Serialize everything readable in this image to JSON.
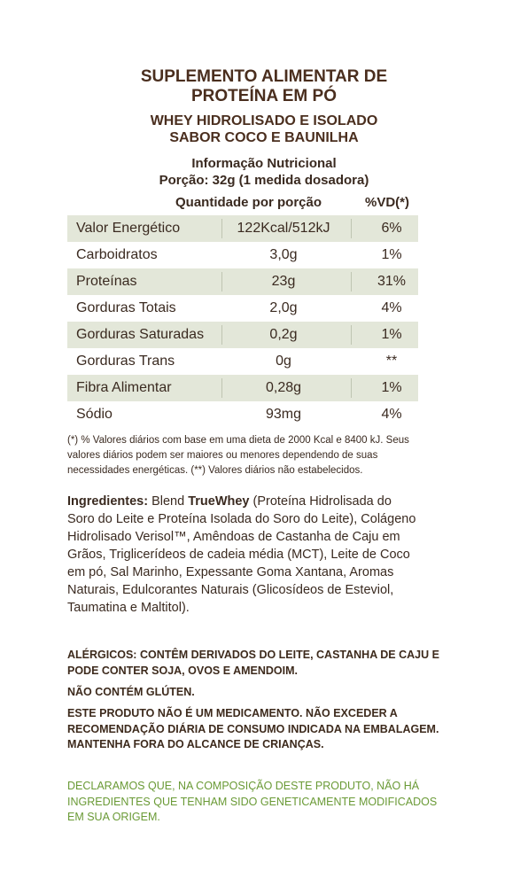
{
  "header": {
    "title_line1": "SUPLEMENTO ALIMENTAR DE",
    "title_line2": "PROTEÍNA EM PÓ",
    "subtitle_line1": "WHEY HIDROLISADO E ISOLADO",
    "subtitle_line2": "SABOR COCO E BAUNILHA"
  },
  "nutrition": {
    "heading": "Informação Nutricional",
    "portion": "Porção: 32g (1 medida dosadora)",
    "col_quantity": "Quantidade por porção",
    "col_vd": "%VD(*)",
    "rows": [
      {
        "name": "Valor Energético",
        "qty": "122Kcal/512kJ",
        "vd": "6%"
      },
      {
        "name": "Carboidratos",
        "qty": "3,0g",
        "vd": "1%"
      },
      {
        "name": "Proteínas",
        "qty": "23g",
        "vd": "31%"
      },
      {
        "name": "Gorduras Totais",
        "qty": "2,0g",
        "vd": "4%"
      },
      {
        "name": "Gorduras Saturadas",
        "qty": "0,2g",
        "vd": "1%"
      },
      {
        "name": "Gorduras Trans",
        "qty": "0g",
        "vd": "**"
      },
      {
        "name": "Fibra Alimentar",
        "qty": "0,28g",
        "vd": "1%"
      },
      {
        "name": "Sódio",
        "qty": "93mg",
        "vd": "4%"
      }
    ],
    "footnote": "(*) % Valores diários com base em uma dieta de 2000 Kcal e 8400 kJ. Seus valores diários podem ser maiores ou menores dependendo de suas necessidades energéticas. (**) Valores diários não estabelecidos."
  },
  "ingredients": {
    "label": "Ingredientes:",
    "blend": "Blend",
    "brand": "TrueWhey",
    "text": "(Proteína Hidrolisada do Soro do Leite e Proteína Isolada do Soro do Leite), Colágeno Hidrolisado Verisol™, Amêndoas de Castanha de Caju em Grãos, Triglicerídeos de cadeia média (MCT), Leite de Coco em pó, Sal Marinho, Expessante Goma Xantana, Aromas Naturais, Edulcorantes Naturais (Glicosídeos de Esteviol, Taumatina e Maltitol)."
  },
  "warnings": {
    "allergens": "ALÉRGICOS: CONTÊM DERIVADOS DO LEITE, CASTANHA DE CAJU E PODE CONTER SOJA, OVOS E AMENDOIM.",
    "gluten": "NÃO CONTÉM GLÚTEN.",
    "medicine": "ESTE PRODUTO NÃO É UM MEDICAMENTO. NÃO EXCEDER A RECOMENDAÇÃO DIÁRIA DE CONSUMO INDICADA NA EMBALAGEM. MANTENHA FORA DO ALCANCE DE CRIANÇAS.",
    "gmo": "DECLARAMOS QUE, NA COMPOSIÇÃO DESTE PRODUTO, NÃO HÁ INGREDIENTES QUE TENHAM SIDO GENETICAMENTE MODIFICADOS EM SUA ORIGEM."
  },
  "colors": {
    "title_brown": "#4a2e1e",
    "row_shade": "#e3e7d9",
    "gmo_green": "#6a9a36"
  }
}
